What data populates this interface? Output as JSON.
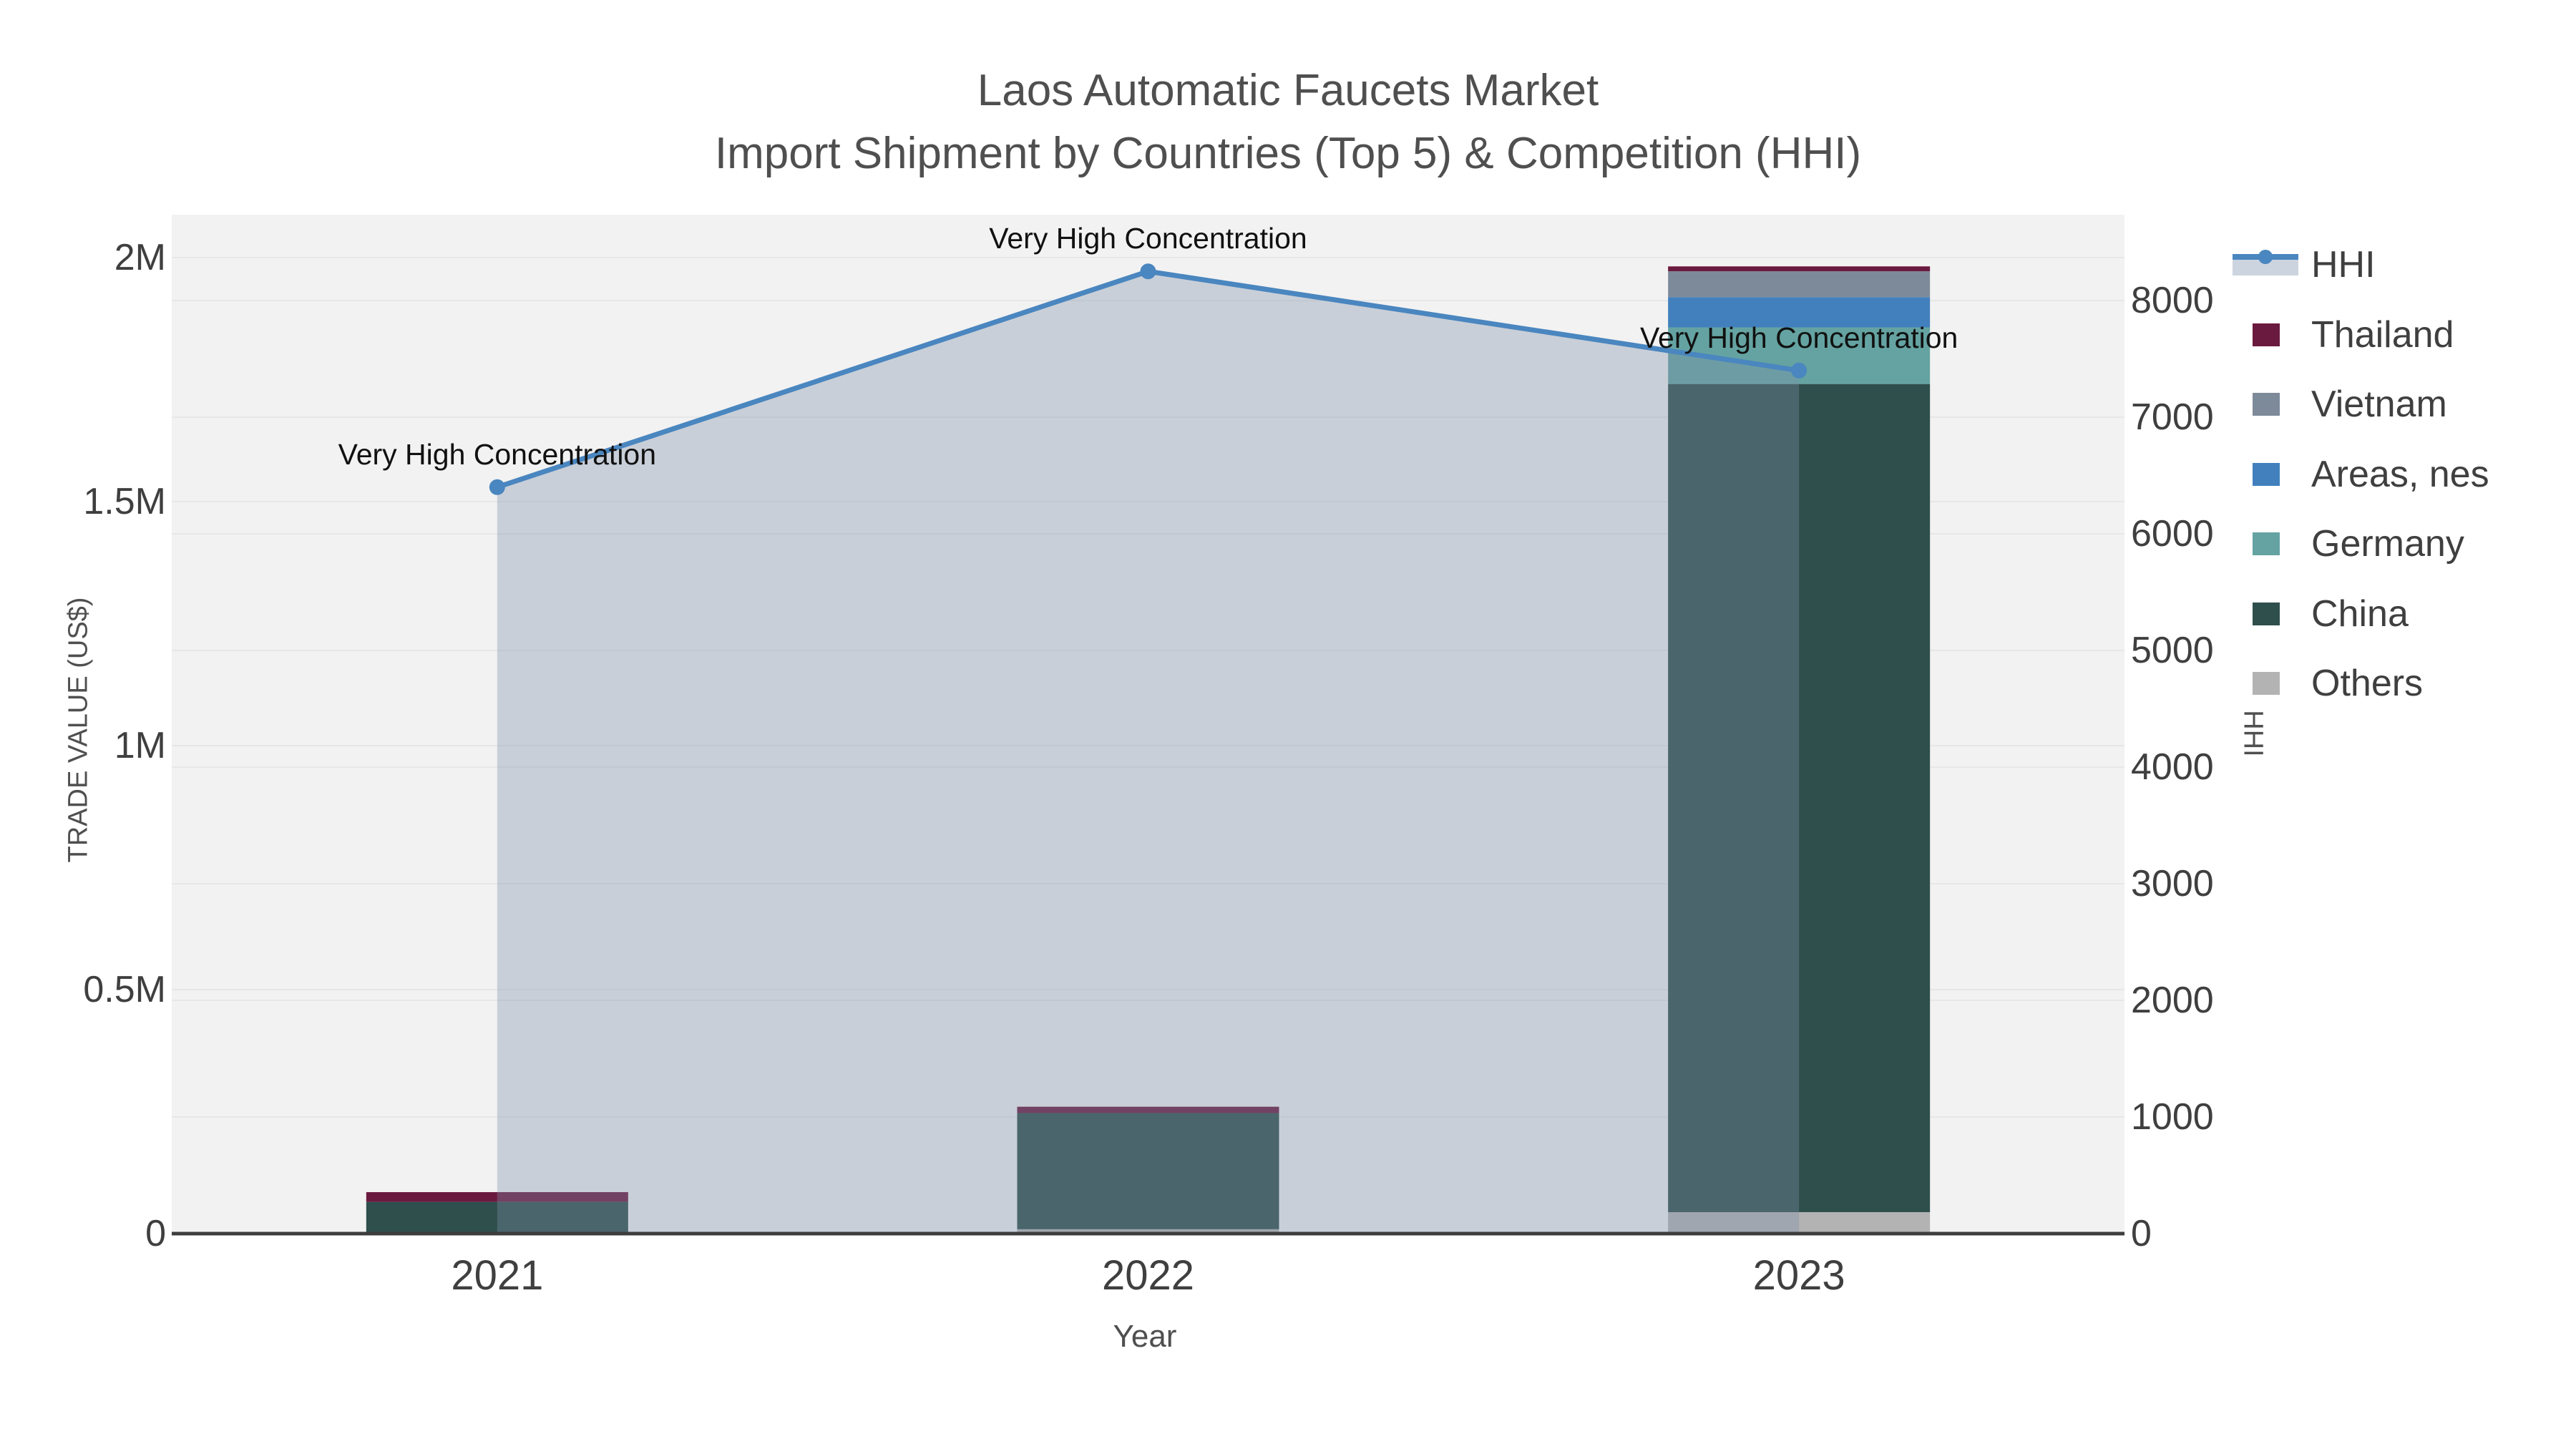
{
  "header": {
    "title": "Laos Automatic Faucets Market",
    "subtitle": "Import Shipment by Countries (Top 5) & Competition (HHI)"
  },
  "chart_data": {
    "type": "bar",
    "subtype": "stacked-bar-with-line",
    "categories": [
      "2021",
      "2022",
      "2023"
    ],
    "series": [
      {
        "name": "Others",
        "color": "#b3b3b3",
        "values": [
          0,
          9000,
          44000
        ]
      },
      {
        "name": "China",
        "color": "#2e4f4c",
        "values": [
          65000,
          238000,
          1697000
        ]
      },
      {
        "name": "Germany",
        "color": "#64a3a1",
        "values": [
          0,
          0,
          116000
        ]
      },
      {
        "name": "Areas, nes",
        "color": "#4180bd",
        "values": [
          0,
          0,
          62000
        ]
      },
      {
        "name": "Vietnam",
        "color": "#7d8a99",
        "values": [
          0,
          0,
          53000
        ]
      },
      {
        "name": "Thailand",
        "color": "#6b1a3f",
        "values": [
          20000,
          13000,
          10000
        ]
      }
    ],
    "line_series": {
      "name": "HHI",
      "values": [
        6400,
        8250,
        7400
      ],
      "color": "#4a86bf",
      "area_fill": "rgba(127,144,170,0.35)"
    },
    "annotations": [
      {
        "category": "2021",
        "text": "Very High Concentration"
      },
      {
        "category": "2022",
        "text": "Very High Concentration"
      },
      {
        "category": "2023",
        "text": "Very High Concentration"
      }
    ],
    "axes": {
      "x": {
        "label": "Year"
      },
      "left": {
        "label": "TRADE VALUE (US$)",
        "ticks": [
          {
            "label": "0",
            "value": 0
          },
          {
            "label": "0.5M",
            "value": 500000
          },
          {
            "label": "1M",
            "value": 1000000
          },
          {
            "label": "1.5M",
            "value": 1500000
          },
          {
            "label": "2M",
            "value": 2000000
          }
        ],
        "range": [
          0,
          2100000
        ]
      },
      "right": {
        "label": "HHI",
        "ticks": [
          {
            "label": "0",
            "value": 0
          },
          {
            "label": "1000",
            "value": 1000
          },
          {
            "label": "2000",
            "value": 2000
          },
          {
            "label": "3000",
            "value": 3000
          },
          {
            "label": "4000",
            "value": 4000
          },
          {
            "label": "5000",
            "value": 5000
          },
          {
            "label": "6000",
            "value": 6000
          },
          {
            "label": "7000",
            "value": 7000
          },
          {
            "label": "8000",
            "value": 8000
          }
        ],
        "range": [
          0,
          8800
        ]
      }
    },
    "legend": [
      {
        "label": "HHI",
        "type": "line",
        "color": "#4a86bf",
        "fill": "#ccd4df"
      },
      {
        "label": "Thailand",
        "type": "swatch",
        "color": "#6b1a3f"
      },
      {
        "label": "Vietnam",
        "type": "swatch",
        "color": "#7d8a99"
      },
      {
        "label": "Areas, nes",
        "type": "swatch",
        "color": "#4180bd"
      },
      {
        "label": "Germany",
        "type": "swatch",
        "color": "#64a3a1"
      },
      {
        "label": "China",
        "type": "swatch",
        "color": "#2e4f4c"
      },
      {
        "label": "Others",
        "type": "swatch",
        "color": "#b3b3b3"
      }
    ],
    "style": {
      "plot_bg": "#f2f2f2",
      "gridline": "#e7e7e7",
      "axis_line": "#3d3d3d"
    }
  }
}
